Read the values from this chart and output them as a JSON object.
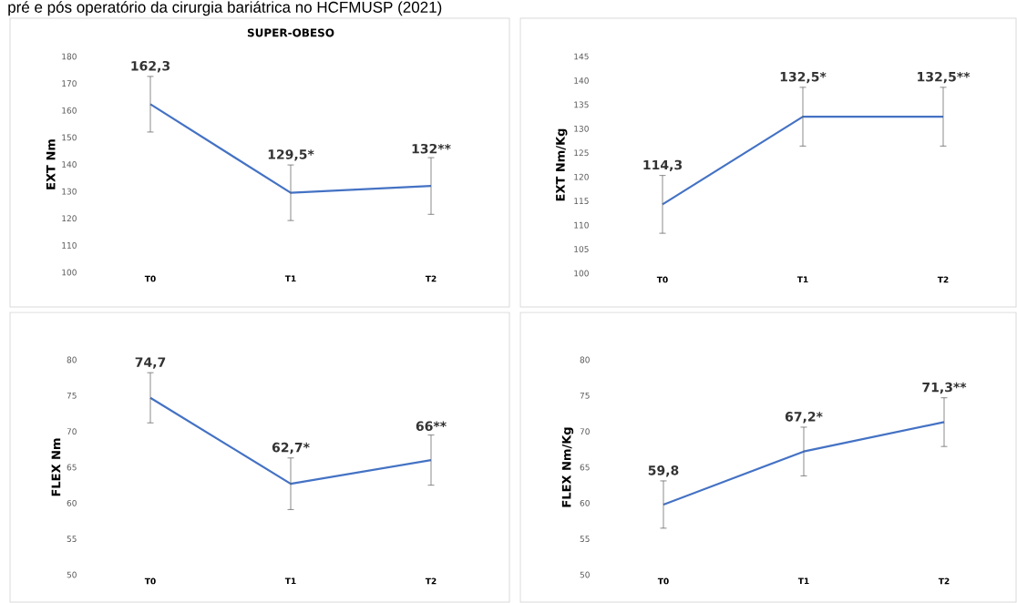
{
  "chart_data": [
    {
      "type": "line",
      "title": "SUPER-OBESO",
      "annotations": [
        "pré e pós operatório da cirurgia bariátrica no HCFMUSP (2021)"
      ],
      "ylabel": "EXT Nm",
      "categories": [
        "T0",
        "T1",
        "T2"
      ],
      "values": [
        162.3,
        129.5,
        132
      ],
      "errors": [
        10.3,
        10.3,
        10.5
      ],
      "value_labels": [
        "162,3",
        "129,5*",
        "132**"
      ],
      "color": "#4472c4",
      "ylim": [
        100,
        180
      ],
      "yticks": [
        100,
        110,
        120,
        130,
        140,
        150,
        160,
        170,
        180
      ]
    },
    {
      "type": "line",
      "ylabel": "EXT Nm/Kg",
      "categories": [
        "T0",
        "T1",
        "T2"
      ],
      "values": [
        114.3,
        132.5,
        132.5
      ],
      "errors": [
        6,
        6.1,
        6.1
      ],
      "value_labels": [
        "114,3",
        "132,5*",
        "132,5**"
      ],
      "color": "#4472c4",
      "ylim": [
        100,
        145
      ],
      "yticks": [
        100,
        105,
        110,
        115,
        120,
        125,
        130,
        135,
        140,
        145
      ]
    },
    {
      "type": "line",
      "ylabel": "FLEX Nm",
      "categories": [
        "T0",
        "T1",
        "T2"
      ],
      "values": [
        74.7,
        62.7,
        66
      ],
      "errors": [
        3.5,
        3.6,
        3.5
      ],
      "value_labels": [
        "74,7",
        "62,7*",
        "66**"
      ],
      "color": "#4472c4",
      "ylim": [
        50,
        80
      ],
      "yticks": [
        50,
        55,
        60,
        65,
        70,
        75,
        80
      ]
    },
    {
      "type": "line",
      "ylabel": "FLEX Nm/Kg",
      "categories": [
        "T0",
        "T1",
        "T2"
      ],
      "values": [
        59.8,
        67.2,
        71.3
      ],
      "errors": [
        3.3,
        3.4,
        3.4
      ],
      "value_labels": [
        "59,8",
        "67,2*",
        "71,3**"
      ],
      "color": "#4472c4",
      "ylim": [
        50,
        80
      ],
      "yticks": [
        50,
        55,
        60,
        65,
        70,
        75,
        80
      ]
    }
  ]
}
